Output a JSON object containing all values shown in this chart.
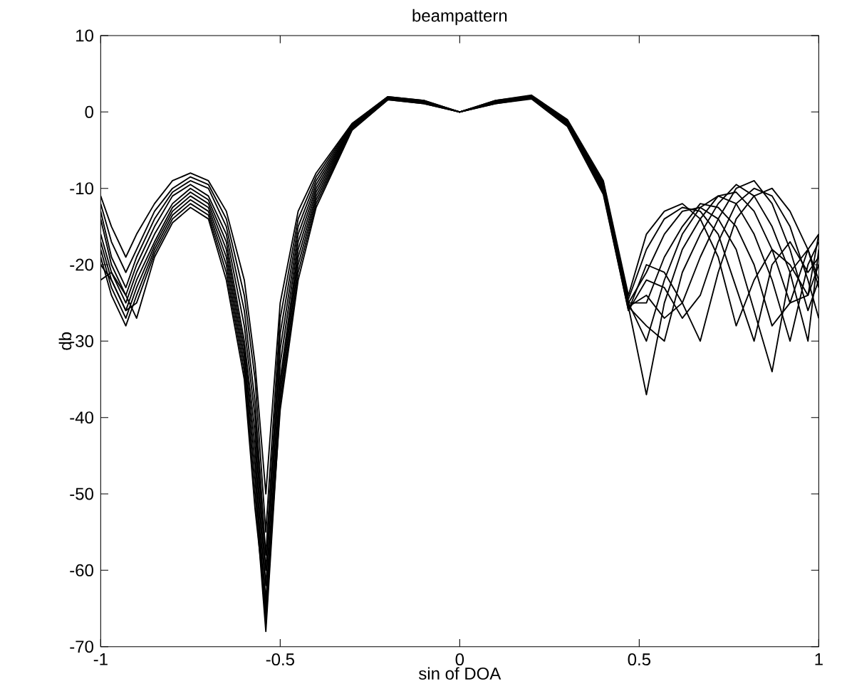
{
  "chart_data": {
    "type": "line",
    "title": "beampattern",
    "xlabel": "sin of DOA",
    "ylabel": "db",
    "x": [
      -1,
      -0.97,
      -0.93,
      -0.9,
      -0.85,
      -0.8,
      -0.75,
      -0.7,
      -0.65,
      -0.6,
      -0.57,
      -0.54,
      -0.5,
      -0.45,
      -0.4,
      -0.3,
      -0.2,
      -0.1,
      0,
      0.1,
      0.2,
      0.3,
      0.4,
      0.47,
      0.52,
      0.57,
      0.62,
      0.67,
      0.72,
      0.77,
      0.82,
      0.87,
      0.92,
      0.97,
      1
    ],
    "xlim": [
      -1,
      1
    ],
    "xticks": [
      -1,
      -0.5,
      0,
      0.5,
      1
    ],
    "ylim": [
      -70,
      10
    ],
    "yticks": [
      -70,
      -60,
      -50,
      -40,
      -30,
      -20,
      -10,
      0,
      10
    ],
    "marker": "none",
    "line_style": "solid",
    "series": [
      {
        "color": "#000000",
        "values": [
          -11,
          -15,
          -19,
          -16,
          -12,
          -9,
          -8,
          -9,
          -13,
          -22,
          -33,
          -50,
          -25,
          -13,
          -8,
          -1.5,
          2,
          1.5,
          0,
          1.5,
          2.2,
          -1,
          -9,
          -24,
          -16,
          -13,
          -12,
          -14,
          -19,
          -28,
          -22,
          -18,
          -20,
          -24,
          -20
        ]
      },
      {
        "color": "#000000",
        "values": [
          -12,
          -17,
          -21,
          -18,
          -13,
          -10,
          -8.5,
          -9.5,
          -14,
          -24,
          -35,
          -55,
          -27,
          -14,
          -8.5,
          -1.6,
          2,
          1.5,
          0,
          1.5,
          2.1,
          -1.1,
          -9.2,
          -24.5,
          -18,
          -14,
          -12.5,
          -13,
          -16,
          -23,
          -30,
          -20,
          -17,
          -21,
          -19
        ]
      },
      {
        "color": "#000000",
        "values": [
          -13,
          -19,
          -23,
          -19,
          -14,
          -10.5,
          -9,
          -10,
          -15,
          -26,
          -38,
          -58,
          -29,
          -15,
          -9,
          -1.7,
          1.9,
          1.4,
          0,
          1.4,
          2.1,
          -1.2,
          -9.4,
          -25,
          -21,
          -16,
          -13,
          -12.5,
          -14,
          -18,
          -26,
          -34,
          -21,
          -18,
          -22
        ]
      },
      {
        "color": "#000000",
        "values": [
          -14,
          -20,
          -24,
          -20,
          -15,
          -11,
          -9.5,
          -11,
          -16,
          -28,
          -40,
          -60,
          -31,
          -16,
          -9.5,
          -1.8,
          1.9,
          1.4,
          0,
          1.4,
          2,
          -1.3,
          -9.6,
          -25,
          -25,
          -19,
          -15,
          -12,
          -12.5,
          -15,
          -20,
          -28,
          -25,
          -18,
          -16
        ]
      },
      {
        "color": "#000000",
        "values": [
          -16,
          -21,
          -25,
          -21,
          -16,
          -12,
          -10,
          -11.5,
          -17,
          -30,
          -42,
          -62,
          -33,
          -17,
          -10,
          -1.9,
          1.8,
          1.3,
          0,
          1.3,
          2,
          -1.4,
          -9.8,
          -25,
          -30,
          -22,
          -16,
          -12.5,
          -11,
          -12,
          -16,
          -22,
          -30,
          -20,
          -17
        ]
      },
      {
        "color": "#000000",
        "values": [
          -17,
          -22,
          -26,
          -22,
          -17,
          -12.5,
          -10.5,
          -12,
          -18,
          -31,
          -44,
          -64,
          -35,
          -18,
          -10.5,
          -2,
          1.8,
          1.3,
          0,
          1.3,
          1.9,
          -1.5,
          -10,
          -25.5,
          -37,
          -25,
          -18,
          -14,
          -11,
          -10.5,
          -13,
          -18,
          -25,
          -24,
          -16
        ]
      },
      {
        "color": "#000000",
        "values": [
          -18,
          -23,
          -27,
          -23,
          -17.5,
          -13,
          -11,
          -12.5,
          -19,
          -32,
          -46,
          -66,
          -36,
          -19,
          -11,
          -2.1,
          1.7,
          1.2,
          0,
          1.2,
          1.9,
          -1.6,
          -10.2,
          -25.5,
          -28,
          -30,
          -21,
          -16,
          -12,
          -9.5,
          -11,
          -15,
          -21,
          -30,
          -18
        ]
      },
      {
        "color": "#000000",
        "values": [
          -19,
          -24,
          -28,
          -24,
          -18,
          -13.5,
          -11.5,
          -13,
          -20,
          -33,
          -48,
          -67,
          -37,
          -20,
          -11.5,
          -2.2,
          1.7,
          1.2,
          0,
          1.2,
          1.8,
          -1.7,
          -10.4,
          -25.5,
          -24,
          -27,
          -25,
          -19,
          -14,
          -10,
          -9,
          -12,
          -18,
          -26,
          -22
        ]
      },
      {
        "color": "#000000",
        "values": [
          -20,
          -22,
          -26,
          -25,
          -18.5,
          -14,
          -12,
          -13.5,
          -21,
          -34,
          -50,
          -68,
          -38,
          -21,
          -12,
          -2.3,
          1.6,
          1.1,
          0,
          1.1,
          1.8,
          -1.8,
          -10.6,
          -26,
          -22,
          -23,
          -27,
          -24,
          -17,
          -12,
          -10,
          -11,
          -15,
          -22,
          -27
        ]
      },
      {
        "color": "#000000",
        "values": [
          -22,
          -21,
          -24,
          -27,
          -19,
          -14.5,
          -12.5,
          -14,
          -22,
          -35,
          -52,
          -65,
          -39,
          -22,
          -12.5,
          -2.4,
          1.6,
          1.1,
          0,
          1.1,
          1.7,
          -1.9,
          -10.8,
          -26,
          -20,
          -21,
          -25,
          -30,
          -21,
          -14,
          -11,
          -10,
          -13,
          -18,
          -23
        ]
      }
    ]
  }
}
